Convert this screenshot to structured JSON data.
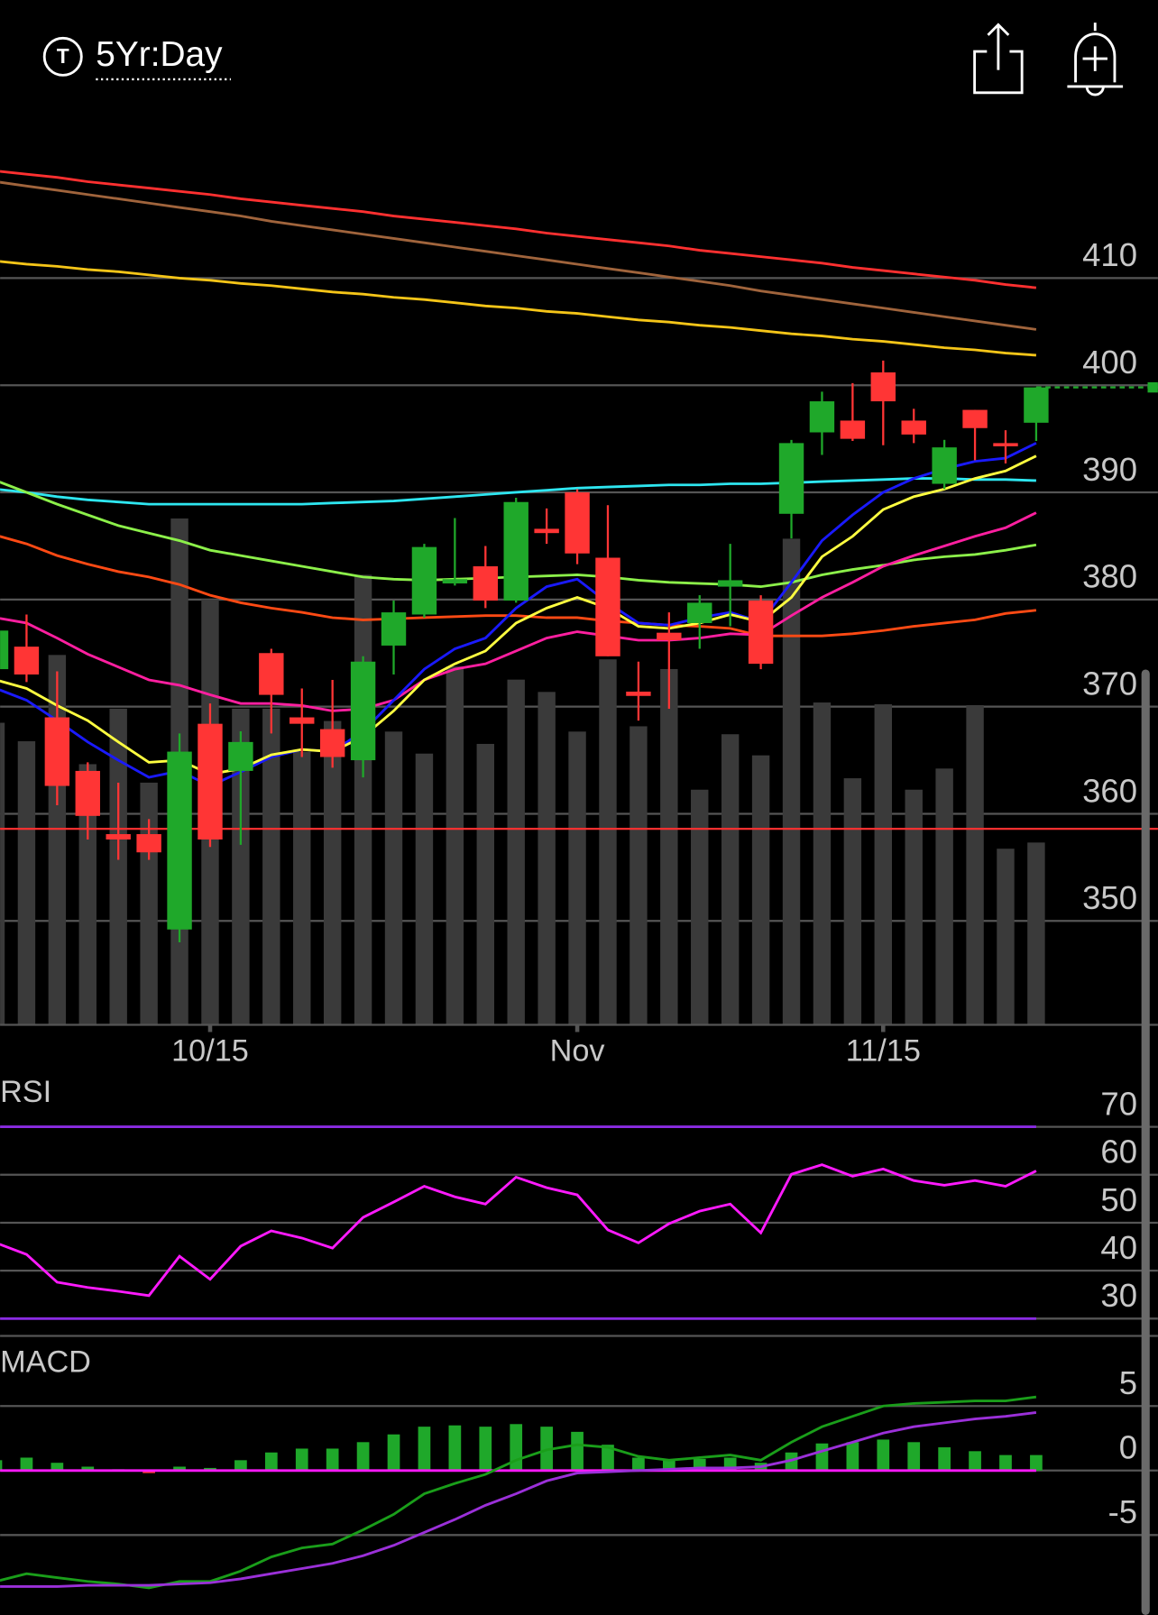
{
  "header": {
    "title": "5Yr:Day"
  },
  "chart_data": [
    {
      "type": "candlestick",
      "categories": [
        null,
        null,
        null,
        null,
        null,
        null,
        null,
        "10/15",
        null,
        null,
        null,
        null,
        null,
        null,
        null,
        null,
        null,
        null,
        null,
        "Nov",
        null,
        null,
        null,
        null,
        null,
        null,
        null,
        null,
        null,
        "11/15",
        null,
        null,
        null,
        null,
        null
      ],
      "open": [
        373.5,
        375.6,
        369.0,
        364.0,
        358.1,
        358.1,
        349.2,
        368.4,
        364.0,
        375.0,
        369.0,
        367.9,
        365.0,
        375.7,
        378.6,
        381.5,
        383.1,
        379.9,
        386.6,
        390.0,
        383.9,
        371.4,
        376.9,
        377.8,
        381.2,
        379.9,
        388.0,
        395.6,
        396.7,
        401.2,
        396.7,
        390.8,
        397.7,
        394.6,
        396.5
      ],
      "high": [
        377.5,
        378.6,
        373.3,
        364.8,
        362.9,
        359.5,
        367.5,
        370.3,
        367.7,
        375.4,
        371.7,
        372.5,
        374.7,
        379.9,
        385.2,
        387.6,
        385.0,
        389.5,
        388.5,
        390.3,
        388.8,
        374.2,
        378.8,
        380.4,
        385.2,
        380.4,
        394.9,
        399.4,
        400.2,
        402.3,
        397.8,
        394.9,
        397.7,
        395.8,
        399.8
      ],
      "low": [
        373.0,
        372.3,
        360.8,
        357.6,
        355.7,
        355.7,
        348.0,
        356.9,
        357.1,
        367.5,
        365.3,
        364.3,
        363.4,
        373.0,
        378.3,
        381.3,
        379.2,
        379.7,
        385.2,
        383.3,
        374.7,
        368.7,
        369.8,
        375.4,
        377.5,
        373.5,
        385.7,
        393.5,
        394.8,
        394.4,
        394.6,
        390.3,
        393.0,
        392.7,
        394.8
      ],
      "close": [
        377.1,
        373.0,
        362.6,
        359.8,
        357.6,
        356.4,
        365.8,
        357.6,
        366.7,
        371.1,
        368.4,
        365.3,
        374.2,
        378.8,
        384.9,
        381.9,
        379.9,
        389.1,
        386.2,
        384.3,
        374.7,
        371.0,
        376.2,
        379.7,
        381.8,
        374.0,
        394.6,
        398.5,
        395.0,
        398.5,
        395.4,
        394.2,
        396.0,
        394.3,
        399.8
      ],
      "up_color": "#1fa82a",
      "down_color": "#ff3535",
      "volume": [
        34.3,
        32.2,
        42.0,
        29.6,
        35.9,
        27.5,
        57.5,
        48.3,
        35.9,
        35.9,
        31.0,
        34.5,
        51.1,
        33.3,
        30.8,
        40.7,
        31.9,
        39.2,
        37.8,
        33.3,
        41.5,
        33.9,
        40.4,
        26.7,
        33.0,
        30.6,
        55.2,
        36.6,
        28.0,
        36.4,
        26.7,
        29.1,
        36.3,
        20.0,
        20.7
      ],
      "volume_lim": [
        0,
        100
      ],
      "volume_color": "#3a3a3a",
      "moving_averages": [
        {
          "color": "#ff3030",
          "values": [
            420.0,
            419.7,
            419.4,
            419.0,
            418.7,
            418.4,
            418.1,
            417.8,
            417.4,
            417.1,
            416.8,
            416.5,
            416.2,
            415.8,
            415.5,
            415.2,
            414.9,
            414.6,
            414.2,
            413.9,
            413.6,
            413.3,
            413.0,
            412.6,
            412.3,
            412.0,
            411.7,
            411.4,
            411.0,
            410.7,
            410.4,
            410.1,
            409.8,
            409.4,
            409.1
          ]
        },
        {
          "color": "#a0643c",
          "values": [
            419.0,
            418.6,
            418.2,
            417.8,
            417.4,
            417.0,
            416.6,
            416.2,
            415.8,
            415.3,
            414.9,
            414.5,
            414.1,
            413.7,
            413.3,
            412.9,
            412.5,
            412.1,
            411.7,
            411.3,
            410.9,
            410.5,
            410.1,
            409.7,
            409.3,
            408.8,
            408.4,
            408.0,
            407.6,
            407.2,
            406.8,
            406.4,
            406.0,
            405.6,
            405.2
          ]
        },
        {
          "color": "#f5c518",
          "values": [
            411.6,
            411.3,
            411.1,
            410.8,
            410.6,
            410.3,
            410.0,
            409.8,
            409.5,
            409.3,
            409.0,
            408.7,
            408.5,
            408.2,
            408.0,
            407.7,
            407.4,
            407.2,
            406.9,
            406.7,
            406.4,
            406.1,
            405.9,
            405.6,
            405.4,
            405.1,
            404.8,
            404.6,
            404.3,
            404.1,
            403.8,
            403.5,
            403.3,
            403.0,
            402.8
          ]
        },
        {
          "color": "#2ee6f0",
          "values": [
            390.3,
            390.0,
            389.6,
            389.3,
            389.1,
            388.9,
            388.9,
            388.9,
            388.9,
            388.9,
            388.9,
            389.0,
            389.1,
            389.2,
            389.4,
            389.6,
            389.8,
            390.0,
            390.2,
            390.4,
            390.5,
            390.6,
            390.7,
            390.7,
            390.8,
            390.8,
            390.9,
            391.0,
            391.1,
            391.2,
            391.3,
            391.3,
            391.2,
            391.2,
            391.1
          ]
        },
        {
          "color": "#8cf04a",
          "values": [
            391.1,
            390.0,
            388.9,
            387.9,
            386.9,
            386.2,
            385.5,
            384.6,
            384.1,
            383.6,
            383.1,
            382.6,
            382.1,
            381.9,
            381.8,
            381.9,
            382.0,
            382.1,
            382.2,
            382.3,
            382.1,
            381.8,
            381.6,
            381.5,
            381.4,
            381.2,
            381.6,
            382.3,
            382.8,
            383.2,
            383.7,
            384.0,
            384.2,
            384.6,
            385.1
          ]
        },
        {
          "color": "#ff4a14",
          "values": [
            386.0,
            385.2,
            384.1,
            383.3,
            382.6,
            382.1,
            381.4,
            380.4,
            379.7,
            379.2,
            378.8,
            378.3,
            378.1,
            378.2,
            378.3,
            378.4,
            378.5,
            378.5,
            378.3,
            378.3,
            378.0,
            377.8,
            377.6,
            377.5,
            377.3,
            376.6,
            376.6,
            376.6,
            376.8,
            377.1,
            377.5,
            377.8,
            378.1,
            378.7,
            379.0
          ]
        },
        {
          "color": "#ff1fa0",
          "values": [
            378.3,
            377.8,
            376.4,
            374.9,
            373.7,
            372.5,
            372.0,
            371.1,
            370.3,
            370.3,
            370.1,
            369.6,
            369.8,
            370.6,
            372.5,
            373.5,
            374.0,
            375.2,
            376.4,
            377.0,
            376.6,
            376.2,
            376.2,
            376.4,
            376.8,
            376.7,
            378.5,
            380.2,
            381.6,
            383.1,
            384.1,
            385.0,
            385.9,
            386.7,
            388.1
          ]
        },
        {
          "color": "#1a1aff",
          "values": [
            371.7,
            370.6,
            368.7,
            366.7,
            365.0,
            363.4,
            364.0,
            362.6,
            363.9,
            365.3,
            366.0,
            365.8,
            367.7,
            370.6,
            373.5,
            375.4,
            376.4,
            379.2,
            381.2,
            381.9,
            379.7,
            377.8,
            377.6,
            378.3,
            378.8,
            377.9,
            381.6,
            385.5,
            387.9,
            390.0,
            391.3,
            392.2,
            392.9,
            393.2,
            394.6
          ]
        },
        {
          "color": "#ffff40",
          "values": [
            372.5,
            371.7,
            370.1,
            368.7,
            366.7,
            364.8,
            365.0,
            363.7,
            364.2,
            365.5,
            366.0,
            365.8,
            367.2,
            369.6,
            372.5,
            374.0,
            375.2,
            377.8,
            379.2,
            380.2,
            379.2,
            377.5,
            377.3,
            377.8,
            378.6,
            377.9,
            380.2,
            384.0,
            385.9,
            388.4,
            389.6,
            390.3,
            391.3,
            392.0,
            393.4
          ]
        }
      ],
      "horizontal_lines": [
        {
          "value": 399.8,
          "color": "#1fa82a",
          "dashed": true
        },
        {
          "value": 358.6,
          "color": "#ff3030",
          "dashed": false
        }
      ],
      "ylim": [
        340.3,
        422.5
      ],
      "yticks": [
        350,
        360,
        370,
        380,
        390,
        400,
        410
      ],
      "grid": true
    },
    {
      "type": "line",
      "title": "RSI",
      "series": [
        {
          "color": "#ff1aff",
          "values": [
            45.8,
            43.4,
            37.6,
            36.5,
            35.7,
            34.8,
            43.0,
            38.2,
            45.1,
            48.3,
            46.8,
            44.7,
            51.1,
            54.3,
            57.6,
            55.4,
            53.9,
            59.5,
            57.3,
            55.8,
            48.5,
            45.8,
            49.8,
            52.4,
            53.9,
            47.9,
            60.1,
            62.1,
            59.7,
            61.2,
            58.8,
            57.8,
            58.8,
            57.6,
            60.8
          ]
        }
      ],
      "threshold_lines": [
        70,
        30
      ],
      "threshold_color": "#8a2be2",
      "ylim": [
        26.4,
        81.6
      ],
      "yticks": [
        30,
        40,
        50,
        60,
        70
      ],
      "grid": true
    },
    {
      "type": "combo",
      "title": "MACD",
      "series": [
        {
          "kind": "bar",
          "color": "#1fa82a",
          "negative_color": "#ff3535",
          "values": [
            0.8,
            1.0,
            0.6,
            0.3,
            0.1,
            -0.2,
            0.3,
            0.2,
            0.8,
            1.4,
            1.7,
            1.7,
            2.2,
            2.8,
            3.4,
            3.5,
            3.4,
            3.6,
            3.4,
            3.0,
            2.0,
            1.0,
            0.8,
            0.9,
            1.0,
            0.6,
            1.4,
            2.1,
            2.2,
            2.4,
            2.2,
            1.8,
            1.5,
            1.2,
            1.2
          ]
        },
        {
          "kind": "line",
          "color": "#1a9e1a",
          "values": [
            -8.6,
            -8.0,
            -8.3,
            -8.6,
            -8.8,
            -9.1,
            -8.6,
            -8.6,
            -7.8,
            -6.7,
            -6.0,
            -5.7,
            -4.6,
            -3.4,
            -1.8,
            -1.0,
            -0.3,
            0.8,
            1.6,
            2.0,
            1.8,
            1.1,
            0.8,
            1.0,
            1.2,
            0.8,
            2.2,
            3.4,
            4.2,
            5.0,
            5.2,
            5.3,
            5.4,
            5.4,
            5.7
          ]
        },
        {
          "kind": "line",
          "color": "#9b30d9",
          "values": [
            -9.0,
            -9.0,
            -9.0,
            -8.9,
            -8.9,
            -8.9,
            -8.8,
            -8.7,
            -8.4,
            -8.0,
            -7.6,
            -7.2,
            -6.6,
            -5.8,
            -4.8,
            -3.8,
            -2.7,
            -1.8,
            -0.8,
            -0.2,
            -0.1,
            0.0,
            0.1,
            0.2,
            0.2,
            0.3,
            0.8,
            1.5,
            2.2,
            2.9,
            3.4,
            3.7,
            4.0,
            4.2,
            4.5
          ]
        }
      ],
      "zero_line_color": "#ff1aff",
      "ylim": [
        -11.2,
        9.8
      ],
      "yticks": [
        -5,
        0,
        5
      ],
      "grid": true
    }
  ]
}
